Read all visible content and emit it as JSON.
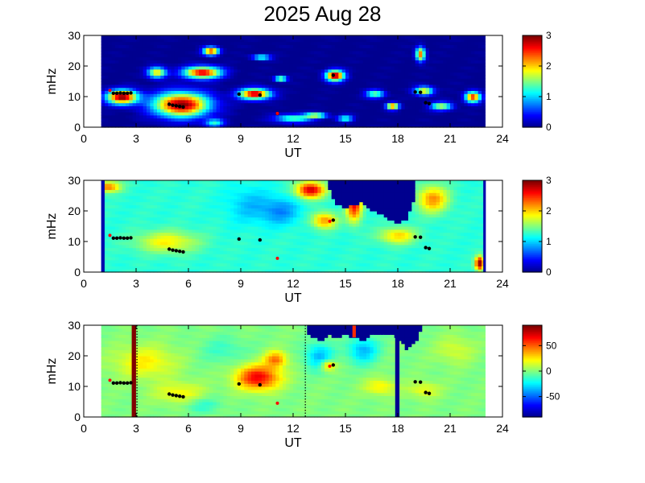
{
  "title": "2025 Aug 28",
  "colors": {
    "background_panel": "#000080",
    "jet_stops": [
      "#00008f",
      "#0000ff",
      "#0080ff",
      "#00ffff",
      "#80ff80",
      "#ffff00",
      "#ff8000",
      "#ff0000",
      "#800000"
    ],
    "marker_black": "#000000",
    "marker_red": "#ff0000"
  },
  "chart_data": [
    {
      "type": "heatmap",
      "name": "panel-1",
      "xlabel": "UT",
      "ylabel": "mHz",
      "xlim": [
        0,
        24
      ],
      "ylim": [
        0,
        30
      ],
      "xticks": [
        "0",
        "3",
        "6",
        "9",
        "12",
        "15",
        "18",
        "21",
        "24"
      ],
      "yticks": [
        "0",
        "10",
        "20",
        "30"
      ],
      "data_extent_x": [
        1,
        23
      ],
      "colorbar": {
        "range": [
          0,
          3
        ],
        "ticks": [
          "0",
          "1",
          "2",
          "3"
        ]
      },
      "background_value": 0,
      "blobs": [
        {
          "x": 2.2,
          "y": 10,
          "rx": 1.0,
          "ry": 2.6,
          "v": 3
        },
        {
          "x": 5.6,
          "y": 7.5,
          "rx": 1.8,
          "ry": 4.5,
          "v": 3
        },
        {
          "x": 6.8,
          "y": 18,
          "rx": 1.2,
          "ry": 2.2,
          "v": 2.8
        },
        {
          "x": 7.3,
          "y": 25,
          "rx": 0.5,
          "ry": 1.5,
          "v": 2.6
        },
        {
          "x": 4.2,
          "y": 18,
          "rx": 0.6,
          "ry": 2.0,
          "v": 2.0
        },
        {
          "x": 9.8,
          "y": 11,
          "rx": 1.0,
          "ry": 2.0,
          "v": 2.9
        },
        {
          "x": 11.3,
          "y": 16,
          "rx": 0.4,
          "ry": 1.0,
          "v": 1.8
        },
        {
          "x": 14.4,
          "y": 17,
          "rx": 0.6,
          "ry": 2.0,
          "v": 3
        },
        {
          "x": 12.0,
          "y": 3.0,
          "rx": 1.2,
          "ry": 1.5,
          "v": 1.4
        },
        {
          "x": 13.3,
          "y": 4.0,
          "rx": 0.7,
          "ry": 1.0,
          "v": 1.8
        },
        {
          "x": 16.7,
          "y": 11,
          "rx": 0.6,
          "ry": 1.5,
          "v": 1.5
        },
        {
          "x": 17.7,
          "y": 7,
          "rx": 0.4,
          "ry": 1.2,
          "v": 2.5
        },
        {
          "x": 19.5,
          "y": 12,
          "rx": 0.6,
          "ry": 1.6,
          "v": 2.0
        },
        {
          "x": 19.3,
          "y": 24,
          "rx": 0.3,
          "ry": 2.5,
          "v": 2.4
        },
        {
          "x": 20.5,
          "y": 7,
          "rx": 0.7,
          "ry": 1.5,
          "v": 1.7
        },
        {
          "x": 22.3,
          "y": 10,
          "rx": 0.5,
          "ry": 2.0,
          "v": 2.6
        },
        {
          "x": 10.2,
          "y": 23,
          "rx": 0.6,
          "ry": 1.0,
          "v": 1.4
        },
        {
          "x": 15.0,
          "y": 3.0,
          "rx": 0.5,
          "ry": 1.2,
          "v": 1.3
        },
        {
          "x": 7.5,
          "y": 1.5,
          "rx": 0.6,
          "ry": 1.5,
          "v": 1.2
        }
      ],
      "black_markers": [
        [
          1.7,
          11.1
        ],
        [
          1.9,
          11.1
        ],
        [
          2.1,
          11.2
        ],
        [
          2.3,
          11.1
        ],
        [
          2.5,
          11.1
        ],
        [
          2.7,
          11.2
        ],
        [
          4.9,
          7.5
        ],
        [
          5.1,
          7.2
        ],
        [
          5.3,
          7.0
        ],
        [
          5.5,
          6.8
        ],
        [
          5.7,
          6.6
        ],
        [
          8.9,
          10.8
        ],
        [
          10.1,
          10.5
        ],
        [
          11.1,
          4.5
        ],
        [
          14.3,
          17.0
        ],
        [
          19.0,
          11.5
        ],
        [
          19.3,
          11.4
        ],
        [
          19.6,
          8.0
        ],
        [
          19.8,
          7.7
        ]
      ],
      "red_markers": [
        [
          1.5,
          12.0
        ],
        [
          11.1,
          4.5
        ]
      ]
    },
    {
      "type": "heatmap",
      "name": "panel-2",
      "xlabel": "UT",
      "ylabel": "mHz",
      "xlim": [
        0,
        24
      ],
      "ylim": [
        0,
        30
      ],
      "xticks": [
        "0",
        "3",
        "6",
        "9",
        "12",
        "15",
        "18",
        "21",
        "24"
      ],
      "yticks": [
        "0",
        "10",
        "20",
        "30"
      ],
      "data_extent_x": [
        1,
        23
      ],
      "colorbar": {
        "range": [
          0,
          3
        ],
        "ticks": [
          "0",
          "1",
          "2",
          "3"
        ]
      },
      "background_value": 1.25,
      "blobs": [
        {
          "x": 1.4,
          "y": 28,
          "rx": 0.8,
          "ry": 2.0,
          "v": 2.3
        },
        {
          "x": 4.8,
          "y": 10,
          "rx": 2.0,
          "ry": 4.0,
          "v": 1.9
        },
        {
          "x": 9.5,
          "y": 22,
          "rx": 1.5,
          "ry": 7,
          "v": 0.95
        },
        {
          "x": 11.3,
          "y": 20,
          "rx": 1.2,
          "ry": 5,
          "v": 0.8
        },
        {
          "x": 13.0,
          "y": 27,
          "rx": 0.9,
          "ry": 3,
          "v": 2.8
        },
        {
          "x": 15.5,
          "y": 22,
          "rx": 0.5,
          "ry": 6,
          "v": 2.6
        },
        {
          "x": 13.8,
          "y": 17,
          "rx": 0.8,
          "ry": 3,
          "v": 2.2
        },
        {
          "x": 18.0,
          "y": 12,
          "rx": 1.2,
          "ry": 3,
          "v": 2.0
        },
        {
          "x": 20.0,
          "y": 24,
          "rx": 1.0,
          "ry": 5,
          "v": 2.2
        },
        {
          "x": 22.7,
          "y": 3,
          "rx": 0.3,
          "ry": 2.5,
          "v": 3
        }
      ],
      "dark_region": {
        "v": 0,
        "columns": [
          [
            14.0,
            30,
            28
          ],
          [
            14.5,
            30,
            22
          ],
          [
            15.0,
            30,
            21
          ],
          [
            15.5,
            30,
            22
          ],
          [
            16.0,
            30,
            23
          ],
          [
            16.5,
            30,
            20
          ],
          [
            17.0,
            30,
            19
          ],
          [
            17.5,
            30,
            17
          ],
          [
            18.0,
            30,
            16
          ],
          [
            18.5,
            30,
            17
          ],
          [
            19.0,
            30,
            24
          ]
        ]
      },
      "dark_strips": [
        {
          "x0": 1.0,
          "x1": 1.15,
          "v": 0.1
        },
        {
          "x0": 22.9,
          "x1": 23.0,
          "v": 0.1
        }
      ],
      "black_markers": [
        [
          1.7,
          11.1
        ],
        [
          1.9,
          11.1
        ],
        [
          2.1,
          11.2
        ],
        [
          2.3,
          11.1
        ],
        [
          2.5,
          11.1
        ],
        [
          2.7,
          11.2
        ],
        [
          4.9,
          7.5
        ],
        [
          5.1,
          7.2
        ],
        [
          5.3,
          7.0
        ],
        [
          5.5,
          6.8
        ],
        [
          5.7,
          6.6
        ],
        [
          8.9,
          10.8
        ],
        [
          10.1,
          10.5
        ],
        [
          14.3,
          17.0
        ],
        [
          19.0,
          11.5
        ],
        [
          19.3,
          11.4
        ],
        [
          19.6,
          8.0
        ],
        [
          19.8,
          7.7
        ]
      ],
      "red_markers": [
        [
          1.5,
          12.0
        ],
        [
          11.1,
          4.5
        ],
        [
          14.1,
          16.6
        ]
      ]
    },
    {
      "type": "heatmap",
      "name": "panel-3",
      "xlabel": "UT",
      "ylabel": "mHz",
      "xlim": [
        0,
        24
      ],
      "ylim": [
        0,
        30
      ],
      "xticks": [
        "0",
        "3",
        "6",
        "9",
        "12",
        "15",
        "18",
        "21",
        "24"
      ],
      "yticks": [
        "0",
        "10",
        "20",
        "30"
      ],
      "data_extent_x": [
        1,
        23
      ],
      "colorbar": {
        "range": [
          -90,
          90
        ],
        "ticks": [
          "50",
          "0",
          "-50"
        ]
      },
      "background_value": 0,
      "blobs": [
        {
          "x": 3.5,
          "y": 18,
          "rx": 2.0,
          "ry": 6,
          "v": 25
        },
        {
          "x": 5.5,
          "y": 8,
          "rx": 1.6,
          "ry": 4,
          "v": 22
        },
        {
          "x": 8.0,
          "y": 22,
          "rx": 1.5,
          "ry": 5,
          "v": -12
        },
        {
          "x": 10.0,
          "y": 13,
          "rx": 1.4,
          "ry": 4.5,
          "v": 70
        },
        {
          "x": 11.0,
          "y": 19,
          "rx": 0.7,
          "ry": 3,
          "v": 45
        },
        {
          "x": 13.5,
          "y": 20,
          "rx": 0.9,
          "ry": 5,
          "v": -35
        },
        {
          "x": 14.0,
          "y": 17,
          "rx": 0.5,
          "ry": 2,
          "v": 40
        },
        {
          "x": 16.0,
          "y": 22,
          "rx": 1.0,
          "ry": 5,
          "v": -35
        },
        {
          "x": 17.0,
          "y": 10,
          "rx": 1.0,
          "ry": 3,
          "v": 25
        },
        {
          "x": 19.5,
          "y": 9,
          "rx": 1.0,
          "ry": 3,
          "v": 20
        },
        {
          "x": 21.3,
          "y": 22,
          "rx": 1.2,
          "ry": 5,
          "v": 15
        },
        {
          "x": 6.8,
          "y": 4,
          "rx": 1.2,
          "ry": 3,
          "v": -15
        }
      ],
      "dark_region": {
        "v": -90,
        "columns": [
          [
            12.8,
            30,
            27
          ],
          [
            13.2,
            30,
            26
          ],
          [
            13.6,
            30,
            25
          ],
          [
            14.0,
            30,
            27
          ],
          [
            14.5,
            30,
            26
          ],
          [
            15.0,
            30,
            27
          ],
          [
            15.5,
            30,
            26
          ],
          [
            16.0,
            30,
            25
          ],
          [
            16.5,
            30,
            27
          ],
          [
            17.0,
            30,
            27
          ],
          [
            17.5,
            30,
            27
          ],
          [
            18.0,
            30,
            26
          ],
          [
            18.5,
            30,
            22
          ],
          [
            19.0,
            30,
            24
          ],
          [
            19.5,
            30,
            30
          ]
        ]
      },
      "stripes": [
        {
          "x0": 2.75,
          "x1": 2.95,
          "v": 90
        },
        {
          "x0": 17.85,
          "x1": 18.05,
          "v": -90
        },
        {
          "x0": 15.4,
          "x1": 15.55,
          "v": 60,
          "ymin": 26
        }
      ],
      "dotted_lines": [
        3.05,
        12.7
      ],
      "black_markers": [
        [
          1.7,
          11.1
        ],
        [
          1.9,
          11.1
        ],
        [
          2.1,
          11.2
        ],
        [
          2.3,
          11.1
        ],
        [
          2.5,
          11.1
        ],
        [
          2.7,
          11.2
        ],
        [
          4.9,
          7.5
        ],
        [
          5.1,
          7.2
        ],
        [
          5.3,
          7.0
        ],
        [
          5.5,
          6.8
        ],
        [
          5.7,
          6.6
        ],
        [
          8.9,
          10.8
        ],
        [
          10.1,
          10.5
        ],
        [
          14.3,
          17.0
        ],
        [
          19.0,
          11.5
        ],
        [
          19.3,
          11.4
        ],
        [
          19.6,
          8.0
        ],
        [
          19.8,
          7.7
        ]
      ],
      "red_markers": [
        [
          1.5,
          12.0
        ],
        [
          11.1,
          4.5
        ],
        [
          14.1,
          16.6
        ]
      ]
    }
  ]
}
